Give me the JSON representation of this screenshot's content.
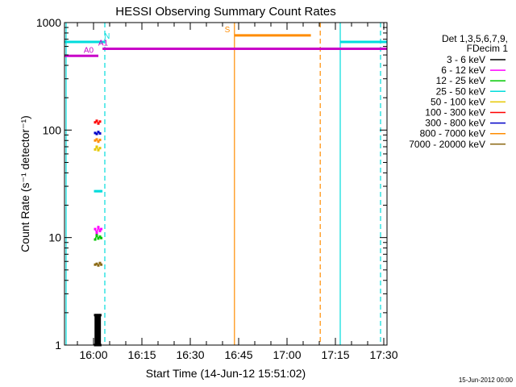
{
  "chart_data": {
    "type": "line",
    "title": "HESSI Observing Summary Count Rates",
    "xlabel": "Start Time (14-Jun-12 15:51:02)",
    "ylabel": "Count Rate (s⁻¹ detector⁻¹)",
    "yscale": "log",
    "ylim": [
      1,
      1000
    ],
    "xlim_minutes_after_1600": [
      -9,
      91
    ],
    "x_ticks": [
      {
        "label": "16:00",
        "minutes_after_1600": 0
      },
      {
        "label": "16:15",
        "minutes_after_1600": 15
      },
      {
        "label": "16:30",
        "minutes_after_1600": 30
      },
      {
        "label": "16:45",
        "minutes_after_1600": 45
      },
      {
        "label": "17:00",
        "minutes_after_1600": 60
      },
      {
        "label": "17:15",
        "minutes_after_1600": 75
      },
      {
        "label": "17:30",
        "minutes_after_1600": 90
      }
    ],
    "y_ticks": [
      {
        "label": "1",
        "value": 1
      },
      {
        "label": "10",
        "value": 10
      },
      {
        "label": "100",
        "value": 100
      },
      {
        "label": "1000",
        "value": 1000
      }
    ],
    "legend": {
      "placement": "right",
      "header": [
        "Det 1,3,5,6,7,9,",
        "FDecim 1"
      ],
      "entries": [
        {
          "label": "3 - 6 keV",
          "color": "#000000"
        },
        {
          "label": "6 - 12 keV",
          "color": "#ff00ff"
        },
        {
          "label": "12 - 25 keV",
          "color": "#00c800"
        },
        {
          "label": "25 - 50 keV",
          "color": "#00dcdc"
        },
        {
          "label": "50 - 100 keV",
          "color": "#e6c800"
        },
        {
          "label": "100 - 300 keV",
          "color": "#ff0000"
        },
        {
          "label": "300 - 800 keV",
          "color": "#0000c8"
        },
        {
          "label": "800 - 7000 keV",
          "color": "#ff8c00"
        },
        {
          "label": "7000 - 20000 keV",
          "color": "#8b6914"
        }
      ]
    },
    "series": [
      {
        "name": "3 - 6 keV",
        "color": "#000000",
        "x": [
          0.5,
          0.5,
          0.9,
          0.9,
          1.3,
          1.3,
          1.7,
          1.7,
          2.1,
          2.1
        ],
        "y": [
          1,
          1.9,
          1,
          1.9,
          1,
          1.9,
          1,
          1.9,
          1,
          1.9
        ]
      },
      {
        "name": "6 - 12 keV",
        "color": "#ff00ff",
        "x": [
          0.5,
          1.0,
          1.5,
          2.0,
          2.4
        ],
        "y": [
          12,
          11,
          12.5,
          11.5,
          12
        ]
      },
      {
        "name": "12 - 25 keV",
        "color": "#00c800",
        "x": [
          0.5,
          1.0,
          1.5,
          2.0,
          2.4
        ],
        "y": [
          9.6,
          10.5,
          9.8,
          10.2,
          9.9
        ]
      },
      {
        "name": "25 - 50 keV",
        "color": "#00dcdc",
        "x": [
          0.5,
          1.0,
          1.5,
          2.0,
          2.4
        ],
        "y": [
          27,
          27,
          27,
          27,
          27
        ]
      },
      {
        "name": "50 - 100 keV",
        "color": "#e6c800",
        "x": [
          0.5,
          1.0,
          1.5,
          2.0
        ],
        "y": [
          66,
          70,
          65,
          68
        ]
      },
      {
        "name": "100 - 300 keV",
        "color": "#ff0000",
        "x": [
          0.5,
          1.0,
          1.5,
          2.0
        ],
        "y": [
          118,
          122,
          115,
          120
        ]
      },
      {
        "name": "300 - 800 keV",
        "color": "#0000c8",
        "x": [
          0.5,
          1.0,
          1.5,
          2.0
        ],
        "y": [
          94,
          92,
          96,
          93
        ]
      },
      {
        "name": "800 - 7000 keV",
        "color": "#ff8c00",
        "x": [
          0.5,
          1.0,
          1.5,
          2.0
        ],
        "y": [
          80,
          82,
          78,
          81
        ]
      },
      {
        "name": "7000 - 20000 keV",
        "color": "#8b6914",
        "x": [
          0.5,
          1.0,
          1.5,
          2.0,
          2.4
        ],
        "y": [
          5.6,
          5.7,
          5.5,
          5.8,
          5.6
        ]
      }
    ],
    "flag_bars": [
      {
        "label": "N",
        "color": "#00dcdc",
        "y": 660,
        "segments": [
          [
            -9,
            3.5
          ],
          [
            76.5,
            91
          ]
        ],
        "label_at": 4.2
      },
      {
        "label": "A0",
        "color": "#c800c8",
        "y": 490,
        "segments": [
          [
            -9,
            1.5
          ]
        ],
        "label_at": -1.5
      },
      {
        "label": "A1",
        "color": "#c800c8",
        "y": 570,
        "segments": [
          [
            2.8,
            91
          ]
        ],
        "label_at": 3.0
      },
      {
        "label": "S",
        "color": "#ff8c00",
        "y": 760,
        "segments": [
          [
            43.7,
            67.4
          ]
        ],
        "label_at": 41.5
      }
    ],
    "vertical_markers": [
      {
        "color": "#00dcdc",
        "style": "solid",
        "x": -8.5
      },
      {
        "color": "#00dcdc",
        "style": "dashed",
        "x": 3.5
      },
      {
        "color": "#00dcdc",
        "style": "solid",
        "x": 76.5
      },
      {
        "color": "#00dcdc",
        "style": "dashed",
        "x": 89.0
      },
      {
        "color": "#ff8c00",
        "style": "solid",
        "x": 43.7
      },
      {
        "color": "#ff8c00",
        "style": "dashed",
        "x": 70.3
      }
    ],
    "grid": false
  },
  "footer": {
    "timestamp": "15-Jun-2012 00:00"
  }
}
